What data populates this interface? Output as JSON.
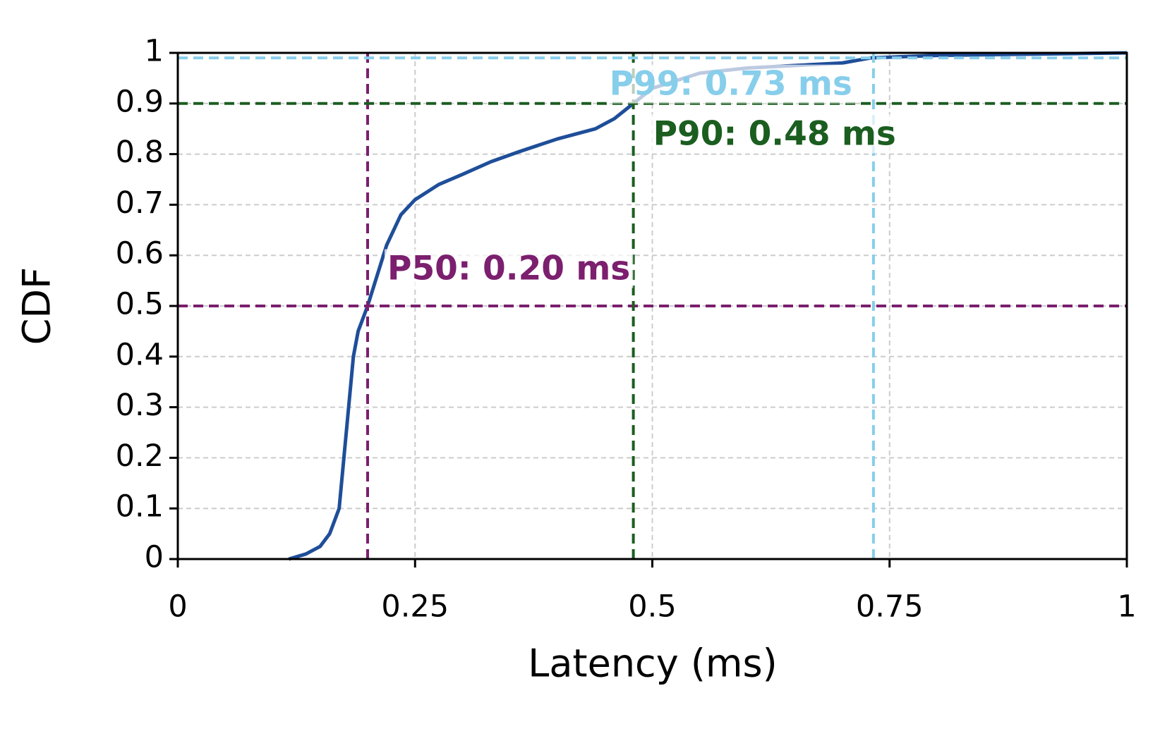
{
  "chart_data": {
    "type": "line",
    "xlabel": "Latency (ms)",
    "ylabel": "CDF",
    "x": [
      0.117,
      0.135,
      0.15,
      0.16,
      0.17,
      0.175,
      0.18,
      0.185,
      0.19,
      0.2,
      0.21,
      0.22,
      0.235,
      0.25,
      0.275,
      0.3,
      0.33,
      0.36,
      0.4,
      0.44,
      0.46,
      0.48,
      0.5,
      0.55,
      0.6,
      0.7,
      0.73,
      0.8,
      1.0
    ],
    "values": [
      0,
      0.01,
      0.025,
      0.05,
      0.1,
      0.2,
      0.3,
      0.4,
      0.45,
      0.5,
      0.56,
      0.62,
      0.68,
      0.71,
      0.74,
      0.76,
      0.785,
      0.805,
      0.83,
      0.85,
      0.87,
      0.9,
      0.93,
      0.96,
      0.97,
      0.98,
      0.99,
      0.995,
      1.0
    ],
    "color": "#1f4e99",
    "percentiles": [
      {
        "label": "P50: 0.20 ms",
        "x": 0.2,
        "y": 0.5,
        "color": "#7b1f6e"
      },
      {
        "label": "P90: 0.48 ms",
        "x": 0.48,
        "y": 0.9,
        "color": "#1b5e20"
      },
      {
        "label": "P99: 0.73 ms",
        "x": 0.733,
        "y": 0.99,
        "color": "#87ceeb"
      }
    ],
    "xlim": [
      0,
      1
    ],
    "ylim": [
      0,
      1
    ],
    "xticks": [
      0,
      0.25,
      0.5,
      0.75,
      1
    ],
    "yticks": [
      0,
      0.1,
      0.2,
      0.3,
      0.4,
      0.5,
      0.6,
      0.7,
      0.8,
      0.9,
      1
    ],
    "grid": true
  }
}
